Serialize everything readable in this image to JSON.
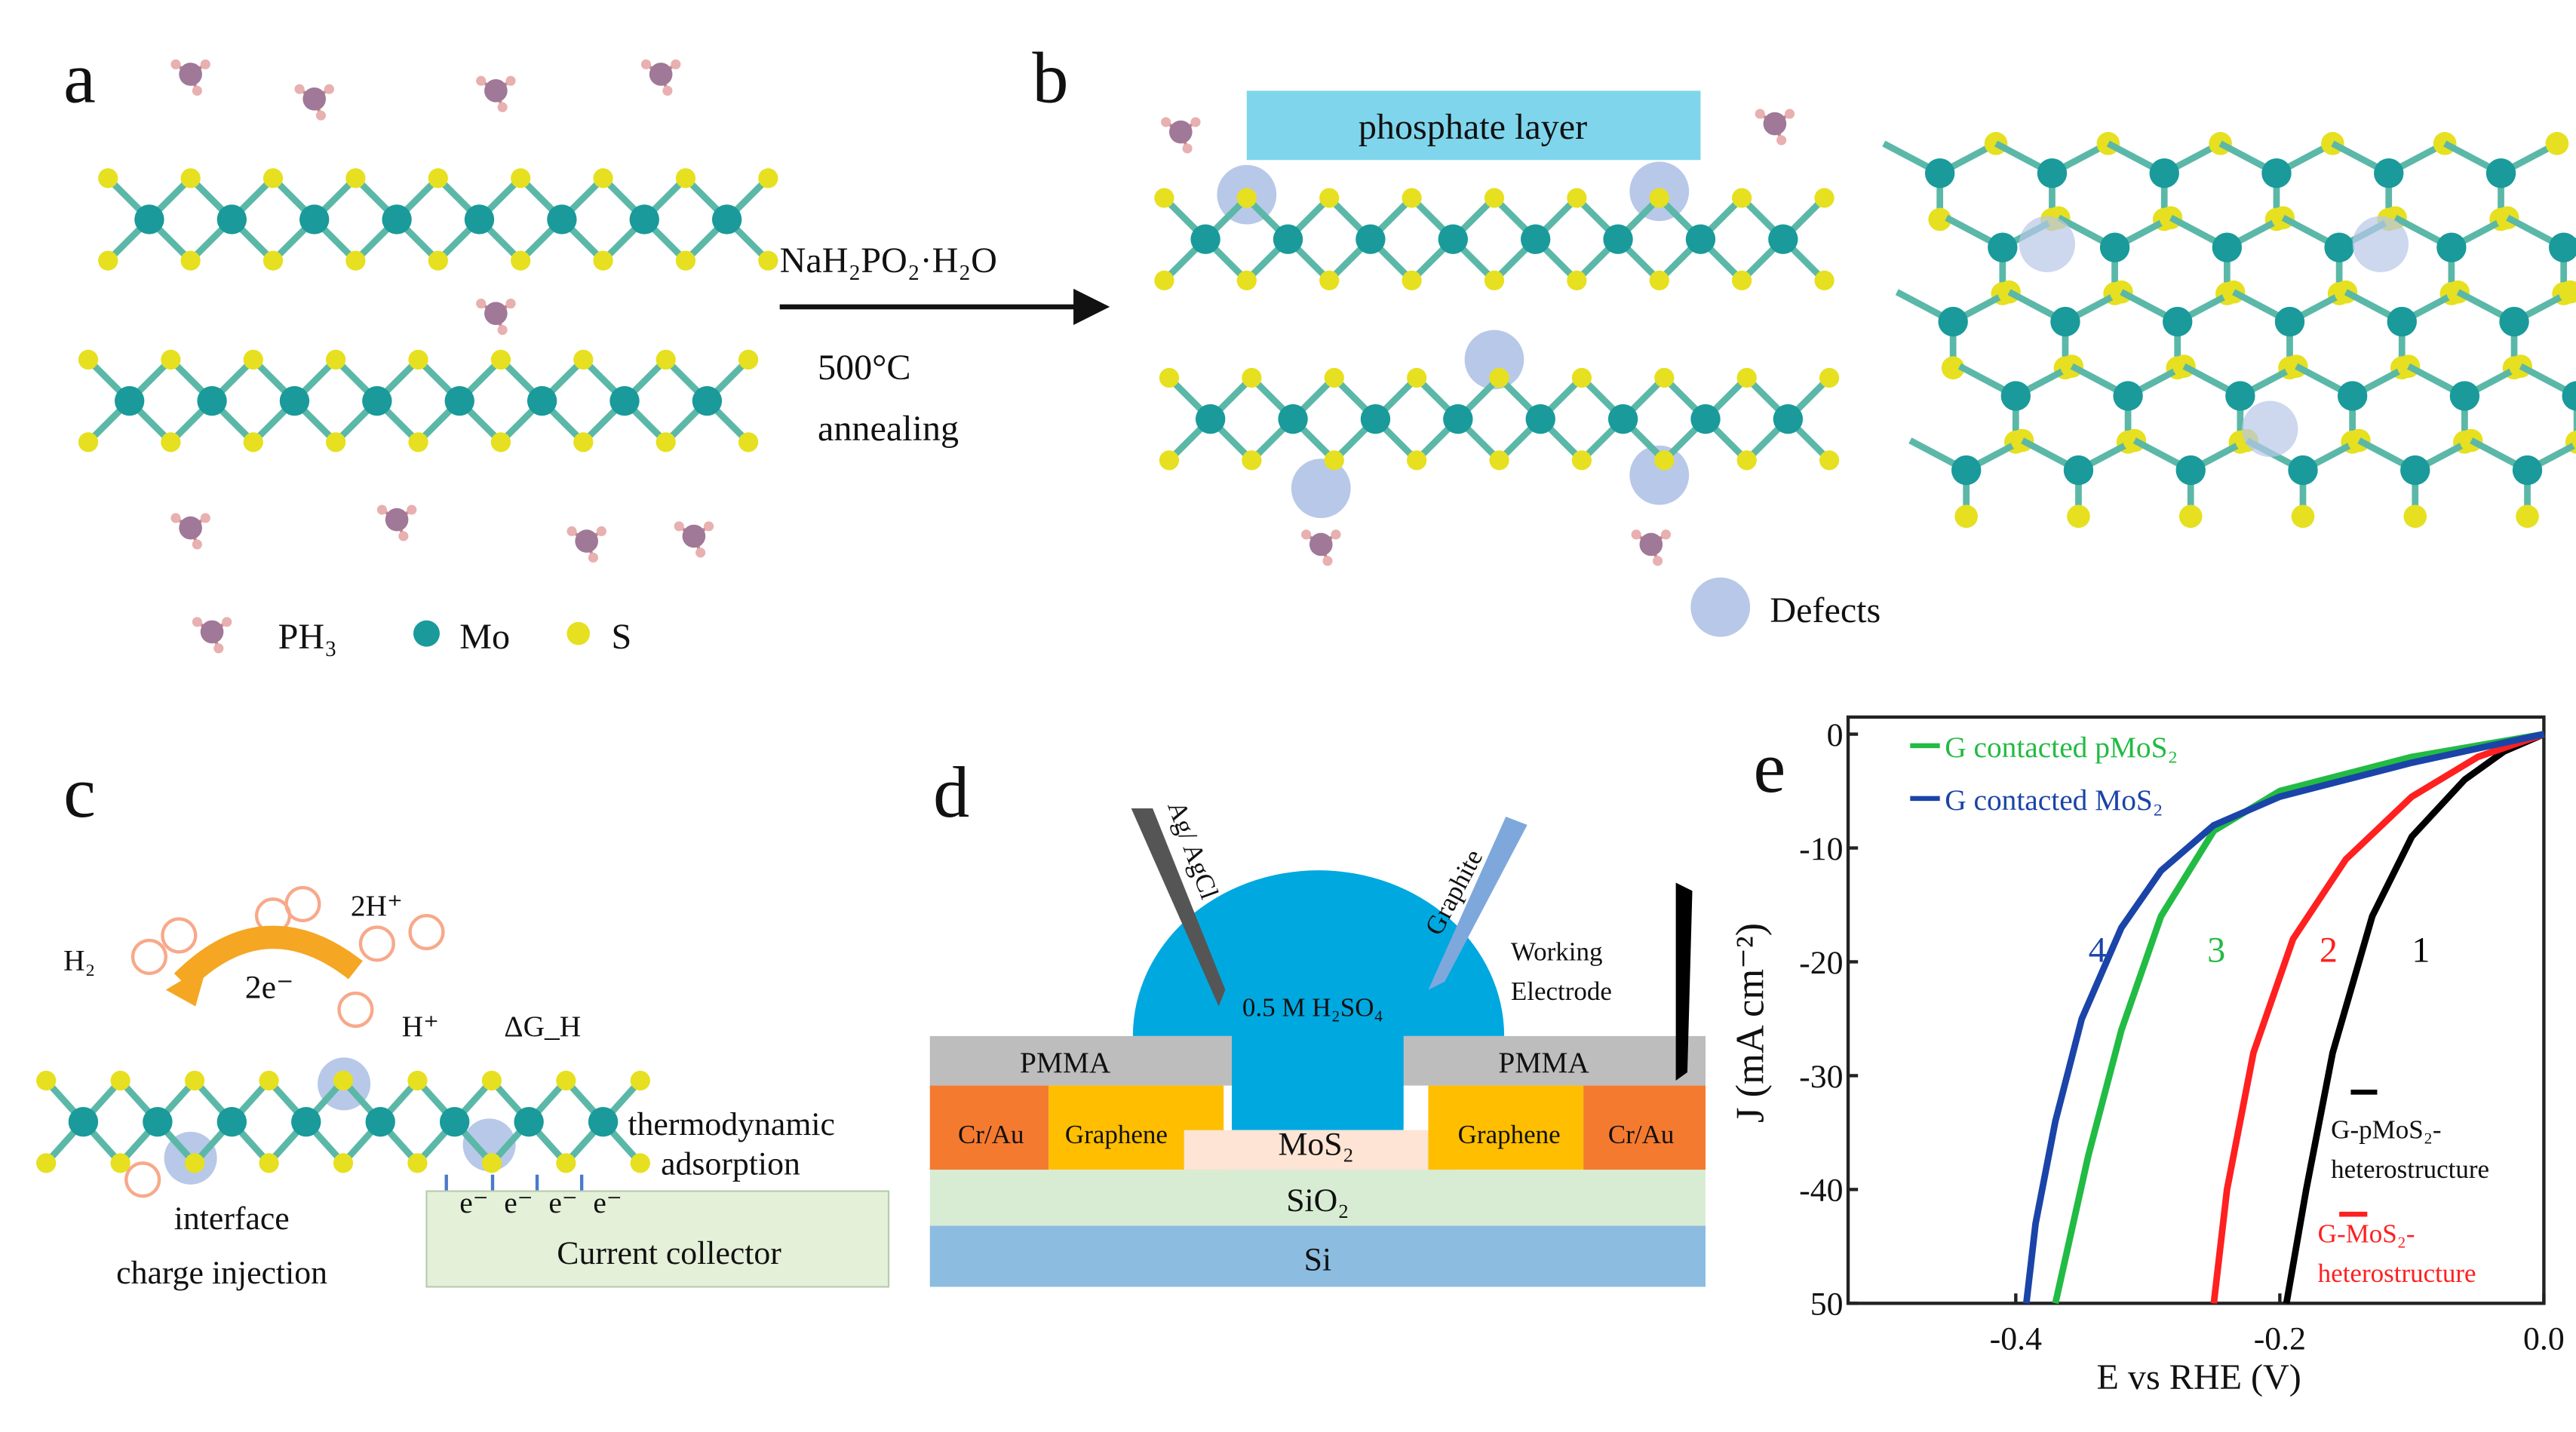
{
  "panel_a": {
    "label": "a",
    "legend": {
      "ph3": "PH₃",
      "mo": "Mo",
      "s": "S"
    }
  },
  "panel_b": {
    "label": "b",
    "phosphate": "phosphate layer",
    "reagent": "NaH₂PO₂·H₂O",
    "temp": "500°C",
    "process": "annealing",
    "defects": "Defects"
  },
  "panel_c": {
    "label": "c",
    "h2": "H₂",
    "two_e": "2e⁻",
    "two_h": "2H⁺",
    "h_plus": "H⁺",
    "dg": "ΔG_H",
    "thermo1": "thermodynamic",
    "thermo2": "adsorption",
    "inter1": "interface",
    "inter2": "charge injection",
    "collector": "Current collector",
    "electron": "e⁻"
  },
  "panel_d": {
    "label": "d",
    "ref": "Ag/ AgCl",
    "counter": "Graphite",
    "we1": "Working",
    "we2": "Electrode",
    "electrolyte": "0.5 M H₂SO₄",
    "pmma": "PMMA",
    "crau": "Cr/Au",
    "graphene": "Graphene",
    "mos2": "MoS₂",
    "sio2": "SiO₂",
    "si": "Si"
  },
  "colors": {
    "mo": "#1a9a9a",
    "s": "#e6e020",
    "ph3": "#a07898",
    "defect": "#b8c8e8",
    "electrolyte": "#00a8e0",
    "pmma": "#bdbdbd",
    "crau": "#f47a30",
    "graphene": "#ffbe00",
    "mos2": "#fde4d4",
    "sio2": "#d8ecd4",
    "si": "#8cbce0"
  },
  "chart_data": {
    "type": "line",
    "panel_label": "e",
    "xlabel": "E vs RHE (V)",
    "ylabel": "J (mA cm⁻²)",
    "xlim": [
      -0.527,
      0.0
    ],
    "ylim": [
      -50,
      1.5
    ],
    "xticks": [
      "-0.4",
      "-0.2",
      "0.0"
    ],
    "yticks": [
      "0",
      "-10",
      "-20",
      "-30",
      "-40",
      "50"
    ],
    "legend_top": [
      "G contacted pMoS₂",
      "G contacted MoS₂"
    ],
    "legend_right": [
      "G-pMoS₂-",
      "heterostructure",
      "G-MoS₂-",
      "heterostructure"
    ],
    "series": [
      {
        "name": "1",
        "color": "#000000",
        "points": [
          [
            0,
            0
          ],
          [
            -0.03,
            -1.5
          ],
          [
            -0.06,
            -4
          ],
          [
            -0.1,
            -9
          ],
          [
            -0.13,
            -16
          ],
          [
            -0.16,
            -28
          ],
          [
            -0.18,
            -40
          ],
          [
            -0.195,
            -50
          ]
        ]
      },
      {
        "name": "2",
        "color": "#ff2020",
        "points": [
          [
            0,
            0
          ],
          [
            -0.05,
            -2
          ],
          [
            -0.1,
            -5.5
          ],
          [
            -0.15,
            -11
          ],
          [
            -0.19,
            -18
          ],
          [
            -0.22,
            -28
          ],
          [
            -0.24,
            -40
          ],
          [
            -0.25,
            -50
          ]
        ]
      },
      {
        "name": "3",
        "color": "#22bb44",
        "points": [
          [
            0,
            0
          ],
          [
            -0.1,
            -2
          ],
          [
            -0.2,
            -5
          ],
          [
            -0.25,
            -8.5
          ],
          [
            -0.29,
            -16
          ],
          [
            -0.32,
            -26
          ],
          [
            -0.345,
            -37
          ],
          [
            -0.37,
            -50
          ]
        ]
      },
      {
        "name": "4",
        "color": "#1a44a8",
        "points": [
          [
            0,
            0
          ],
          [
            -0.1,
            -2.5
          ],
          [
            -0.2,
            -5.5
          ],
          [
            -0.25,
            -8
          ],
          [
            -0.29,
            -12
          ],
          [
            -0.32,
            -17
          ],
          [
            -0.35,
            -25
          ],
          [
            -0.37,
            -34
          ],
          [
            -0.385,
            -43
          ],
          [
            -0.392,
            -50
          ]
        ]
      }
    ]
  }
}
